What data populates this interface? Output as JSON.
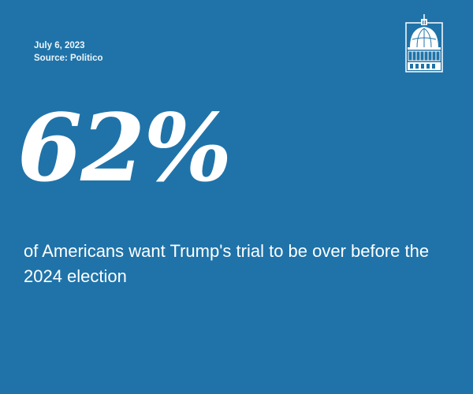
{
  "meta": {
    "date": "July 6, 2023",
    "source": "Source: Politico"
  },
  "logo": {
    "icon": "capitol-dome-icon"
  },
  "stat": {
    "value": "62%",
    "caption": "of Americans want Trump's trial to be over before the 2024 election"
  },
  "colors": {
    "background": "#1f73a9",
    "text": "#ffffff"
  }
}
